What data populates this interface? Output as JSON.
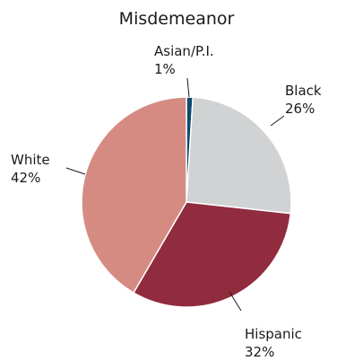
{
  "chart_data": {
    "type": "pie",
    "title": "Misdemeanor",
    "start_angle_deg": 0,
    "direction": "clockwise",
    "slices": [
      {
        "label": "Asian/P.I.",
        "value_label": "1%",
        "value": 1,
        "color": "#0e4a6e"
      },
      {
        "label": "Black",
        "value_label": "26%",
        "value": 26,
        "color": "#d0d2d3"
      },
      {
        "label": "Hispanic",
        "value_label": "32%",
        "value": 32,
        "color": "#912b3e"
      },
      {
        "label": "White",
        "value_label": "42%",
        "value": 42,
        "color": "#d68b82"
      }
    ]
  }
}
